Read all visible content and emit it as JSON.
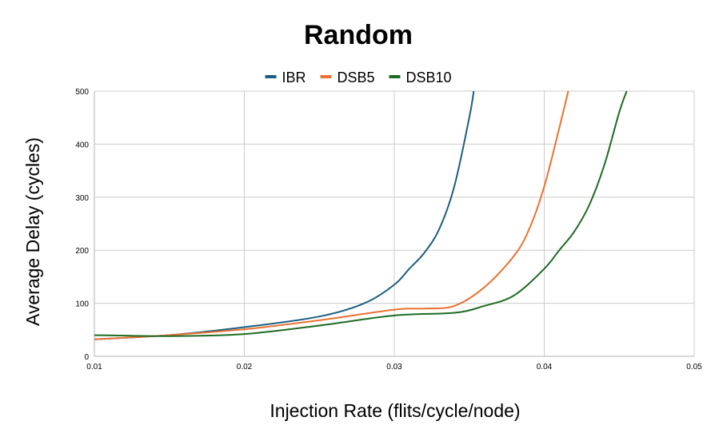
{
  "chart_data": {
    "type": "line",
    "title": "Random",
    "xlabel": "Injection Rate (flits/cycle/node)",
    "ylabel": "Average Delay (cycles)",
    "xlim": [
      0.01,
      0.05
    ],
    "ylim": [
      0,
      500
    ],
    "x_ticks": [
      "0.01",
      "0.02",
      "0.03",
      "0.04",
      "0.05"
    ],
    "y_ticks": [
      "0",
      "100",
      "200",
      "300",
      "400",
      "500"
    ],
    "grid": true,
    "legend_position": "top",
    "series": [
      {
        "name": "IBR",
        "color": "#1a5e80",
        "points": [
          [
            0.01,
            32
          ],
          [
            0.015,
            40
          ],
          [
            0.02,
            55
          ],
          [
            0.025,
            75
          ],
          [
            0.028,
            100
          ],
          [
            0.03,
            135
          ],
          [
            0.031,
            165
          ],
          [
            0.032,
            195
          ],
          [
            0.033,
            240
          ],
          [
            0.034,
            320
          ],
          [
            0.035,
            450
          ],
          [
            0.0353,
            500
          ]
        ]
      },
      {
        "name": "DSB5",
        "color": "#ea7131",
        "points": [
          [
            0.01,
            32
          ],
          [
            0.015,
            40
          ],
          [
            0.02,
            51
          ],
          [
            0.025,
            68
          ],
          [
            0.03,
            88
          ],
          [
            0.032,
            90
          ],
          [
            0.034,
            95
          ],
          [
            0.036,
            130
          ],
          [
            0.038,
            190
          ],
          [
            0.039,
            240
          ],
          [
            0.04,
            320
          ],
          [
            0.041,
            430
          ],
          [
            0.0416,
            500
          ]
        ]
      },
      {
        "name": "DSB10",
        "color": "#1d6b22",
        "points": [
          [
            0.01,
            40
          ],
          [
            0.015,
            38
          ],
          [
            0.02,
            42
          ],
          [
            0.025,
            58
          ],
          [
            0.03,
            77
          ],
          [
            0.034,
            82
          ],
          [
            0.036,
            95
          ],
          [
            0.038,
            115
          ],
          [
            0.04,
            165
          ],
          [
            0.041,
            200
          ],
          [
            0.042,
            235
          ],
          [
            0.043,
            285
          ],
          [
            0.044,
            360
          ],
          [
            0.045,
            460
          ],
          [
            0.0455,
            500
          ]
        ]
      }
    ]
  }
}
